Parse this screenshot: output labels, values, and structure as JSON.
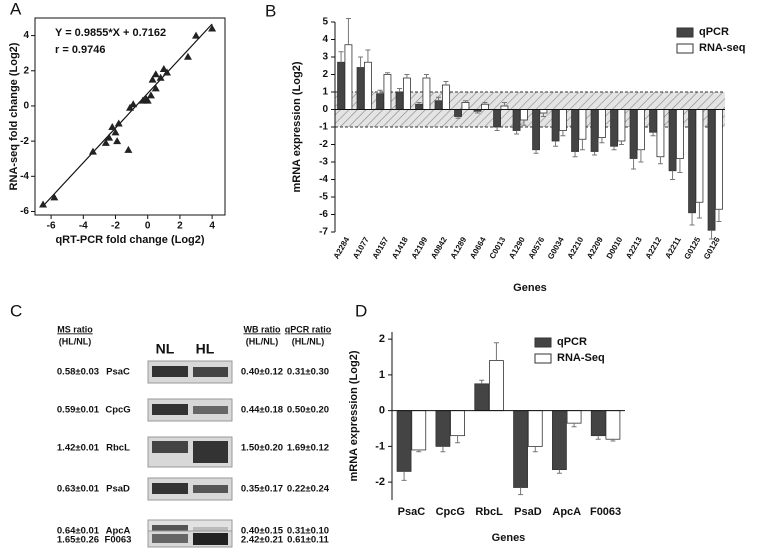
{
  "chart_data": [
    {
      "type": "scatter",
      "panel": "A",
      "x_label": "qRT-PCR fold change (Log2)",
      "y_label": "RNA-seq fold change (Log2)",
      "annotations": [
        "Y = 0.9855*X + 0.7162",
        "r = 0.9746"
      ],
      "x": [
        -6.5,
        -5.8,
        -3.4,
        -2.6,
        -2.4,
        -2.2,
        -2.0,
        -1.9,
        -1.8,
        -1.2,
        -1.1,
        -0.9,
        -0.3,
        -0.1,
        0.0,
        0.2,
        0.3,
        0.5,
        0.5,
        0.8,
        1.0,
        1.2,
        2.5,
        3.0,
        4.0
      ],
      "values": [
        -5.6,
        -5.2,
        -2.6,
        -2.1,
        -1.8,
        -1.2,
        -1.5,
        -2.0,
        -1.0,
        -2.5,
        -0.1,
        0.1,
        0.3,
        0.4,
        0.3,
        0.6,
        1.5,
        1.0,
        1.8,
        1.6,
        2.1,
        1.9,
        2.8,
        4.0,
        4.4
      ],
      "color": "#222222",
      "xlim": [
        -7,
        4.8
      ],
      "ylim": [
        -6.2,
        5
      ],
      "xticks": [
        -6,
        -4,
        -2,
        0,
        2,
        4
      ],
      "yticks": [
        -6,
        -4,
        -2,
        0,
        2,
        4
      ]
    },
    {
      "type": "bar",
      "panel": "B",
      "x_label": "Genes",
      "y_label": "mRNA expression (Log2)",
      "categories": [
        "A2284",
        "A1077",
        "A0157",
        "A1418",
        "A2199",
        "A0842",
        "A1289",
        "A0664",
        "C0013",
        "A1290",
        "A0576",
        "G0034",
        "A2210",
        "A2209",
        "D0010",
        "A2213",
        "A2212",
        "A2211",
        "G0125",
        "G0126"
      ],
      "series": [
        {
          "name": "qPCR",
          "color": "#444444",
          "values": [
            2.7,
            2.4,
            0.9,
            1.0,
            0.3,
            0.5,
            -0.4,
            -0.1,
            -1.0,
            -1.2,
            -2.3,
            -1.8,
            -2.4,
            -2.4,
            -2.1,
            -2.8,
            -1.3,
            -3.5,
            -5.9,
            -6.9
          ],
          "errors": [
            0.6,
            0.6,
            0.2,
            0.2,
            0.1,
            0.2,
            0.1,
            0.1,
            0.2,
            0.2,
            0.2,
            0.3,
            0.3,
            0.2,
            0.2,
            0.6,
            0.2,
            0.5,
            0.7,
            0.5
          ]
        },
        {
          "name": "RNA-seq",
          "color": "#ffffff",
          "values": [
            3.7,
            2.7,
            2.0,
            1.8,
            1.8,
            1.4,
            0.4,
            0.3,
            0.2,
            -0.6,
            -0.2,
            -1.2,
            -1.7,
            -1.6,
            -1.8,
            -2.3,
            -2.7,
            -2.8,
            -5.3,
            -5.7
          ],
          "errors": [
            1.5,
            0.7,
            0.1,
            0.2,
            0.2,
            0.2,
            0.1,
            0.1,
            0.2,
            0.3,
            0.2,
            0.3,
            0.6,
            0.3,
            0.2,
            0.7,
            0.4,
            0.8,
            0.9,
            0.7
          ]
        }
      ],
      "band": [
        -1,
        1
      ],
      "ylim": [
        -7,
        5
      ],
      "yticks": [
        -7,
        -6,
        -5,
        -4,
        -3,
        -2,
        -1,
        0,
        1,
        2,
        3,
        4,
        5
      ]
    },
    {
      "type": "bar",
      "panel": "D",
      "x_label": "Genes",
      "y_label": "mRNA expression (Log2)",
      "categories": [
        "PsaC",
        "CpcG",
        "RbcL",
        "PsaD",
        "ApcA",
        "F0063"
      ],
      "series": [
        {
          "name": "qPCR",
          "color": "#444444",
          "values": [
            -1.7,
            -1.0,
            0.75,
            -2.15,
            -1.65,
            -0.7
          ],
          "errors": [
            0.25,
            0.15,
            0.1,
            0.2,
            0.1,
            0.1
          ]
        },
        {
          "name": "RNA-Seq",
          "color": "#ffffff",
          "values": [
            -1.1,
            -0.7,
            1.4,
            -1.0,
            -0.35,
            -0.8
          ],
          "errors": [
            0.05,
            0.2,
            0.5,
            0.15,
            0.1,
            0.05
          ]
        }
      ],
      "ylim": [
        -2.5,
        2.2
      ],
      "yticks": [
        -2,
        -1,
        0,
        1,
        2
      ]
    }
  ],
  "table": {
    "panel": "C",
    "headers": [
      "MS ratio",
      "(HL/NL)",
      "NL",
      "HL",
      "WB ratio",
      "(HL/NL)",
      "qPCR ratio",
      "(HL/NL)"
    ],
    "rows": [
      [
        "0.58±0.03",
        "PsaC",
        "0.40±0.12",
        "0.31±0.30"
      ],
      [
        "0.59±0.01",
        "CpcG",
        "0.44±0.18",
        "0.50±0.20"
      ],
      [
        "1.42±0.01",
        "RbcL",
        "1.50±0.20",
        "1.69±0.12"
      ],
      [
        "0.63±0.01",
        "PsaD",
        "0.35±0.17",
        "0.22±0.24"
      ],
      [
        "0.64±0.01",
        "ApcA",
        "0.40±0.15",
        "0.31±0.10"
      ],
      [
        "1.65±0.26",
        "F0063",
        "2.42±0.21",
        "0.61±0.11"
      ]
    ]
  }
}
